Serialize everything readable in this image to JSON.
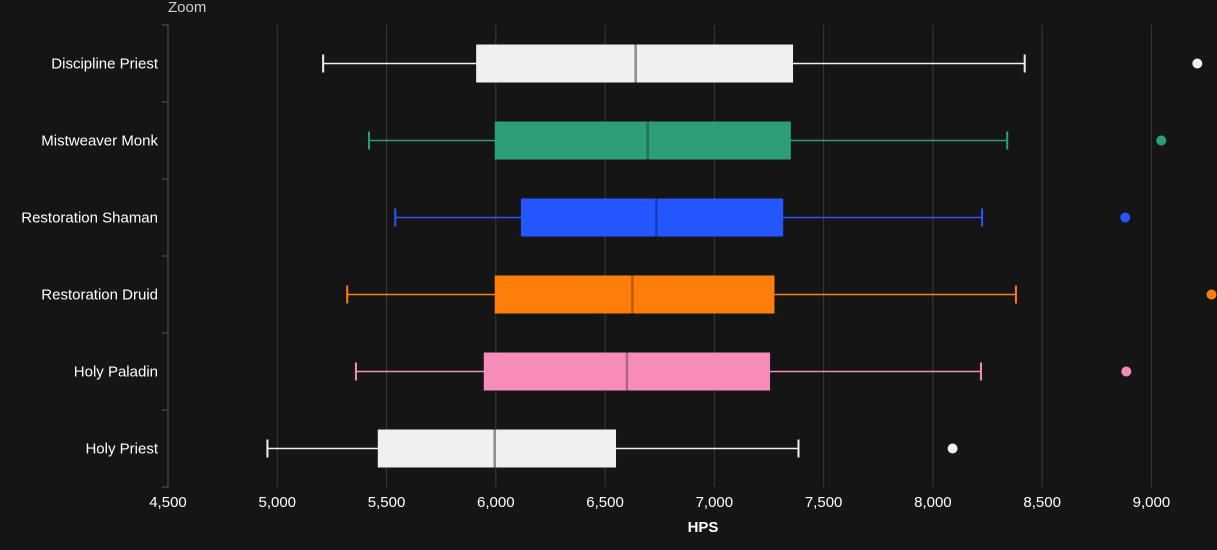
{
  "zoom_label": "Zoom",
  "chart_data": {
    "type": "boxplot",
    "orientation": "horizontal",
    "xlabel": "HPS",
    "xlim": [
      4500,
      9300
    ],
    "xticks": [
      4500,
      5000,
      5500,
      6000,
      6500,
      7000,
      7500,
      8000,
      8500,
      9000
    ],
    "xtick_labels": [
      "4,500",
      "5,000",
      "5,500",
      "6,000",
      "6,500",
      "7,000",
      "7,500",
      "8,000",
      "8,500",
      "9,000"
    ],
    "grid": true,
    "categories": [
      "Discipline Priest",
      "Mistweaver Monk",
      "Restoration Shaman",
      "Restoration Druid",
      "Holy Paladin",
      "Holy Priest"
    ],
    "series": [
      {
        "color": "#f0f0f0",
        "min": 5210,
        "q1": 5910,
        "median": 6640,
        "q3": 7360,
        "max": 8420,
        "outlier": 9210
      },
      {
        "color": "#2e9e7a",
        "min": 5420,
        "q1": 5995,
        "median": 6695,
        "q3": 7350,
        "max": 8340,
        "outlier": 9045
      },
      {
        "color": "#2457ff",
        "min": 5540,
        "q1": 6115,
        "median": 6735,
        "q3": 7315,
        "max": 8225,
        "outlier": 8880
      },
      {
        "color": "#ff7d0a",
        "min": 5320,
        "q1": 5995,
        "median": 6625,
        "q3": 7275,
        "max": 8380,
        "outlier": 9275
      },
      {
        "color": "#f58cba",
        "min": 5360,
        "q1": 5945,
        "median": 6600,
        "q3": 7255,
        "max": 8220,
        "outlier": 8885
      },
      {
        "color": "#f0f0f0",
        "min": 4955,
        "q1": 5460,
        "median": 5995,
        "q3": 6550,
        "max": 7385,
        "outlier": 8090
      }
    ],
    "colors": {
      "background": "#151515",
      "grid": "#3a3a3a",
      "axis": "#555555",
      "text": "#ffffff",
      "median_line": "#8c8c8c"
    }
  }
}
